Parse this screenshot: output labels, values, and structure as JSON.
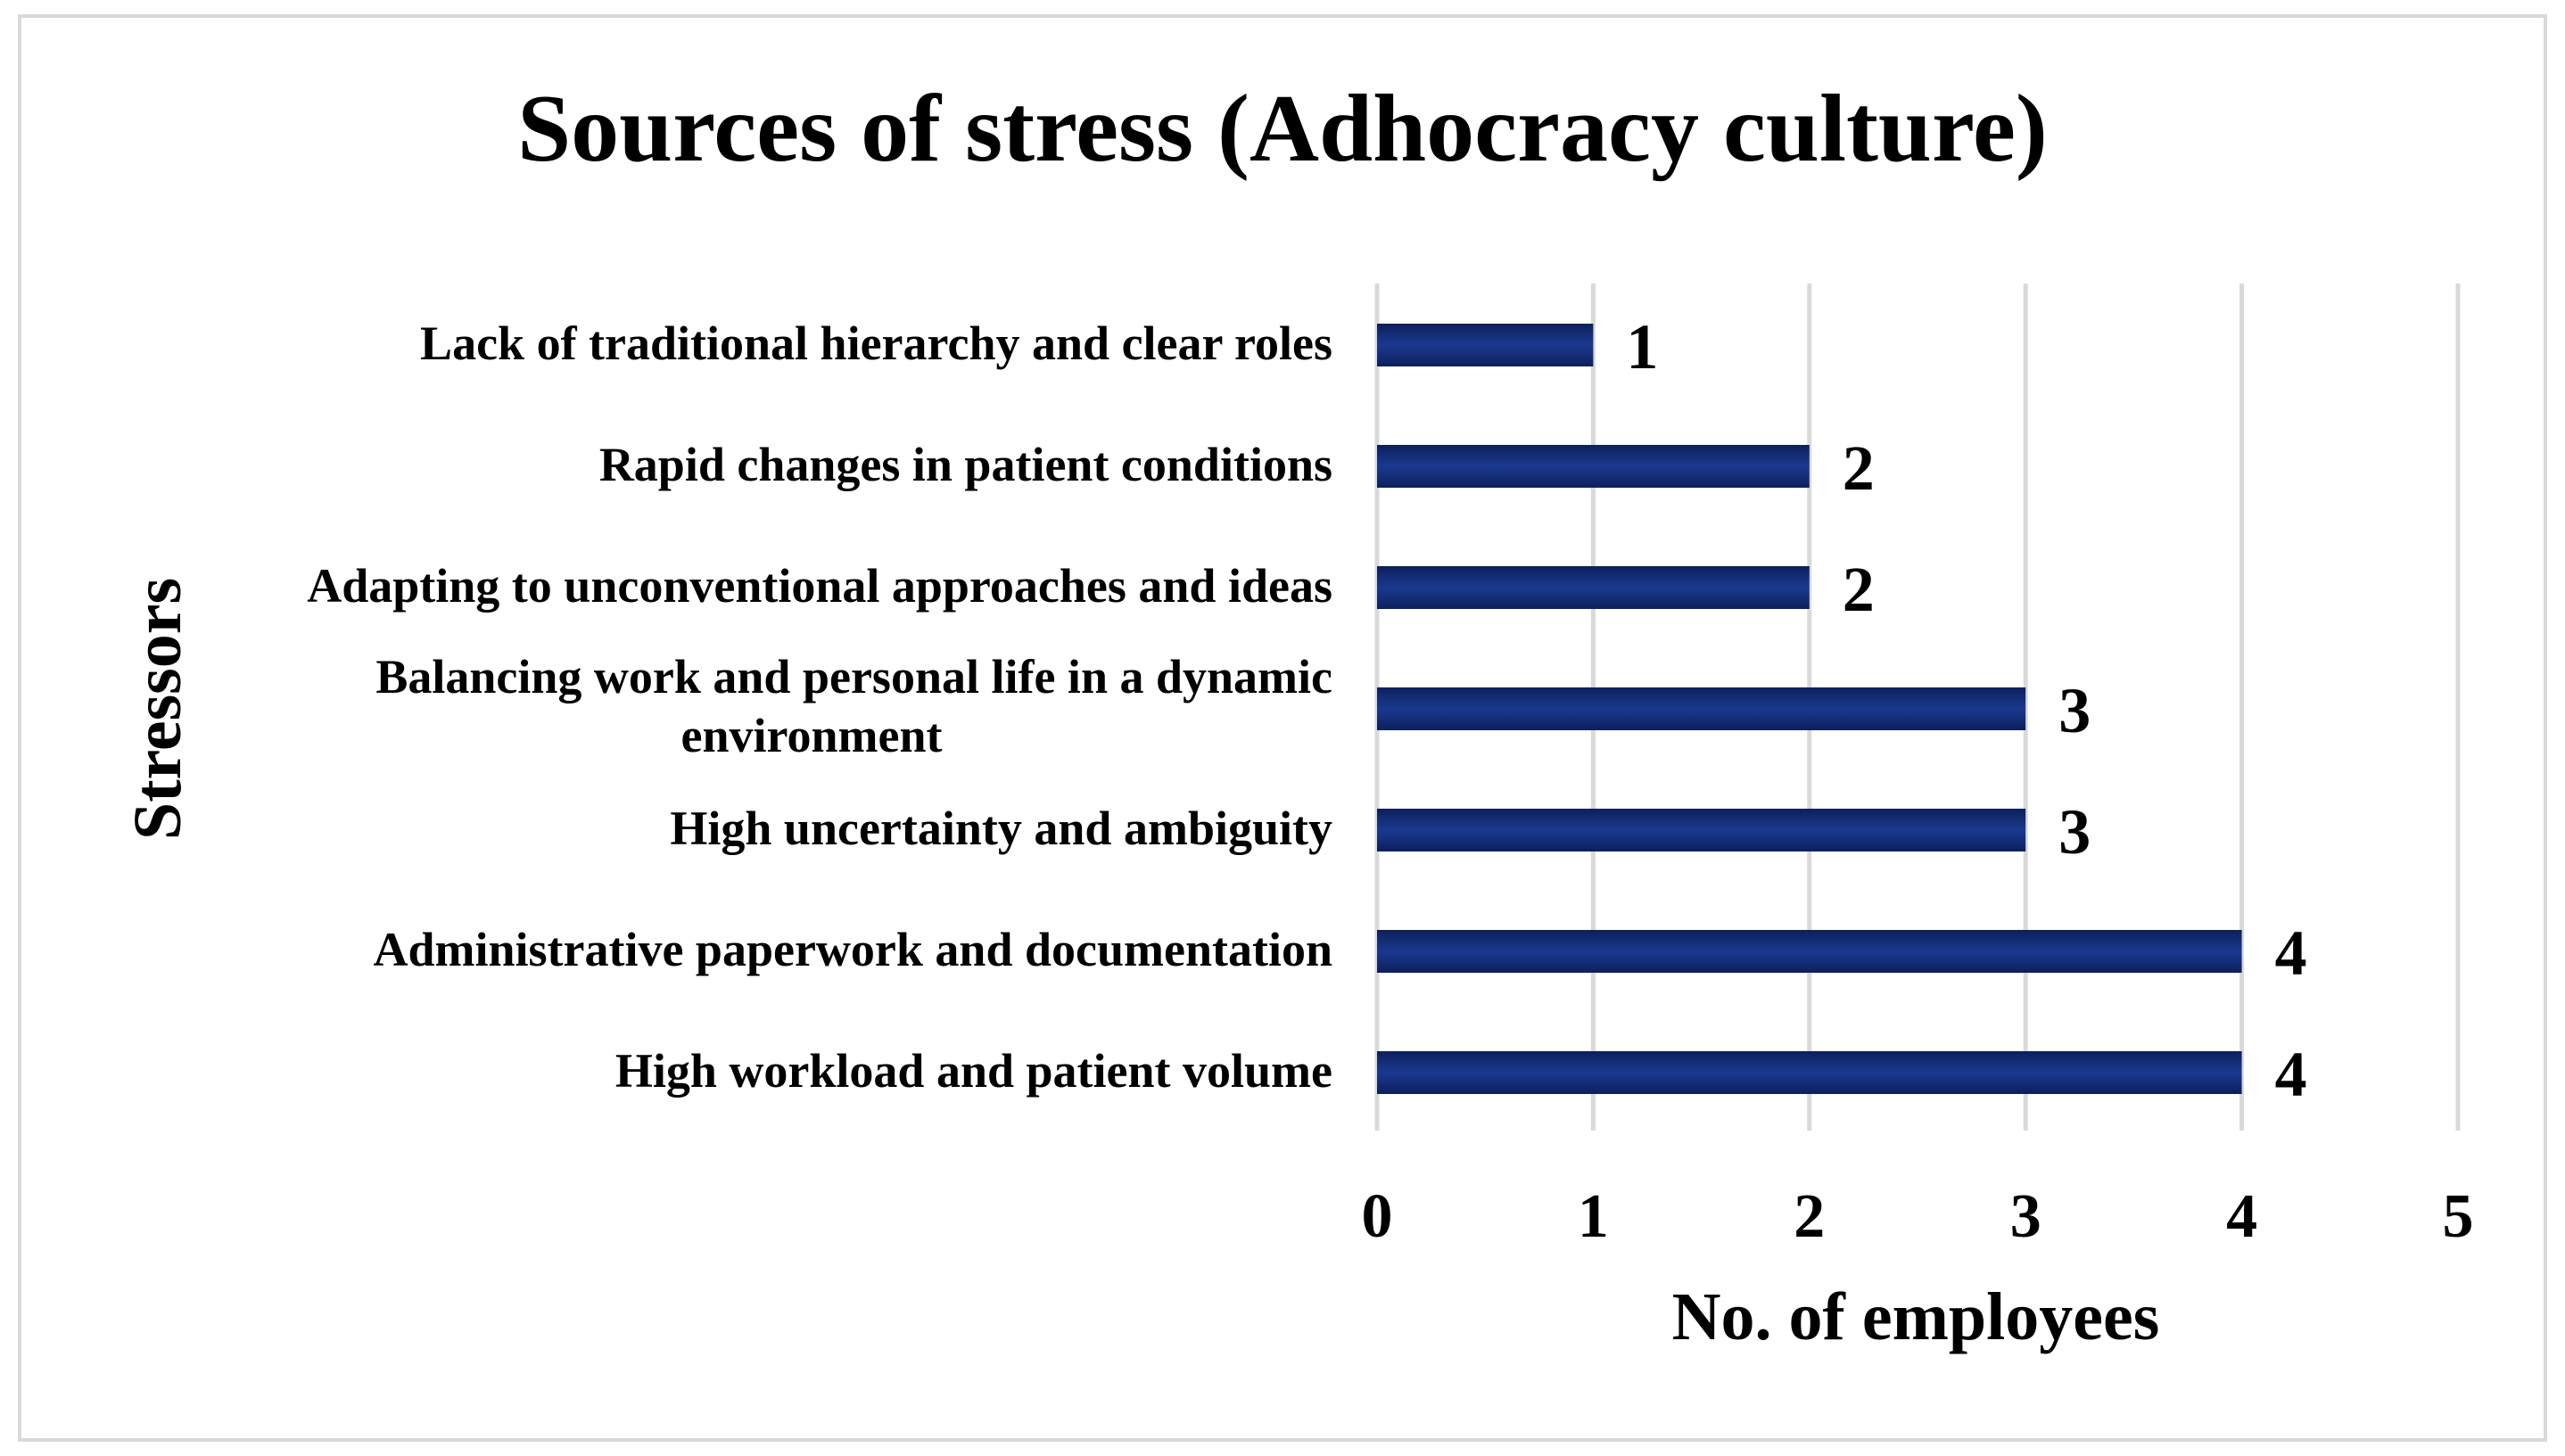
{
  "chart_data": {
    "type": "bar",
    "orientation": "horizontal",
    "title": "Sources of stress (Adhocracy culture)",
    "xlabel": "No. of employees",
    "ylabel": "Stressors",
    "categories": [
      [
        "Lack of traditional hierarchy and clear roles"
      ],
      [
        "Rapid changes in patient conditions"
      ],
      [
        "Adapting to unconventional approaches and ideas"
      ],
      [
        "Balancing work and personal life in a dynamic",
        "environment"
      ],
      [
        "High uncertainty and ambiguity"
      ],
      [
        "Administrative paperwork and documentation"
      ],
      [
        "High workload and patient volume"
      ]
    ],
    "values": [
      1,
      2,
      2,
      3,
      3,
      4,
      4
    ],
    "data_labels": [
      "1",
      "2",
      "2",
      "3",
      "3",
      "4",
      "4"
    ],
    "xlim": [
      0,
      5
    ],
    "xticks": [
      "0",
      "1",
      "2",
      "3",
      "4",
      "5"
    ],
    "grid": true,
    "legend": "none",
    "colors": {
      "bar_dark": "#0d1f5c",
      "bar_mid": "#1a3a8f",
      "gridline": "#d9d9d9",
      "frame": "#d9d9d9"
    }
  }
}
